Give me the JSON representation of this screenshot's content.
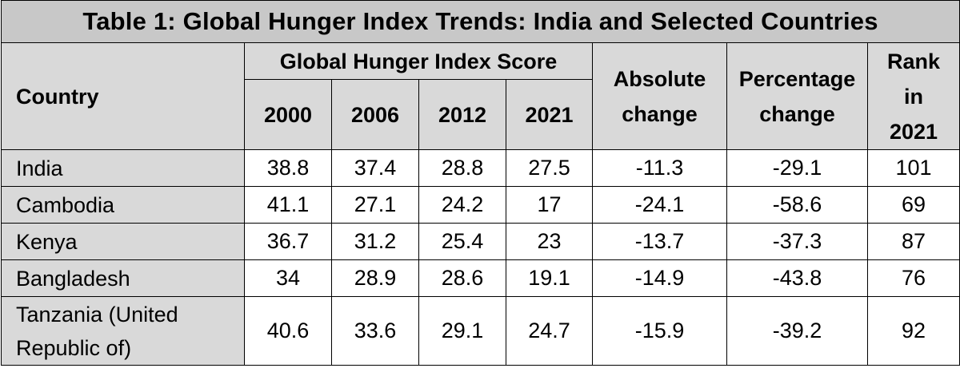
{
  "title": "Table 1: Global Hunger Index Trends: India and Selected Countries",
  "headers": {
    "country": "Country",
    "ghi_group": "Global Hunger Index Score",
    "years": [
      "2000",
      "2006",
      "2012",
      "2021"
    ],
    "absolute_change_line1": "Absolute",
    "absolute_change_line2": "change",
    "percentage_change_line1": "Percentage",
    "percentage_change_line2": "change",
    "rank_line1": "Rank",
    "rank_line2": "in",
    "rank_line3": "2021"
  },
  "rows": [
    {
      "country": "India",
      "y2000": "38.8",
      "y2006": "37.4",
      "y2012": "28.8",
      "y2021": "27.5",
      "abs": "-11.3",
      "pct": "-29.1",
      "rank": "101"
    },
    {
      "country": "Cambodia",
      "y2000": "41.1",
      "y2006": "27.1",
      "y2012": "24.2",
      "y2021": "17",
      "abs": "-24.1",
      "pct": "-58.6",
      "rank": "69"
    },
    {
      "country": "Kenya",
      "y2000": "36.7",
      "y2006": "31.2",
      "y2012": "25.4",
      "y2021": "23",
      "abs": "-13.7",
      "pct": "-37.3",
      "rank": "87"
    },
    {
      "country": "Bangladesh",
      "y2000": "34",
      "y2006": "28.9",
      "y2012": "28.6",
      "y2021": "19.1",
      "abs": "-14.9",
      "pct": "-43.8",
      "rank": "76"
    },
    {
      "country_line1": "Tanzania (United",
      "country_line2": "Republic of)",
      "y2000": "40.6",
      "y2006": "33.6",
      "y2012": "29.1",
      "y2021": "24.7",
      "abs": "-15.9",
      "pct": "-39.2",
      "rank": "92"
    }
  ],
  "colors": {
    "title_bg": "#c8c8c8",
    "header_bg": "#d9d9d9",
    "cell_bg": "#ffffff",
    "border": "#000000"
  }
}
